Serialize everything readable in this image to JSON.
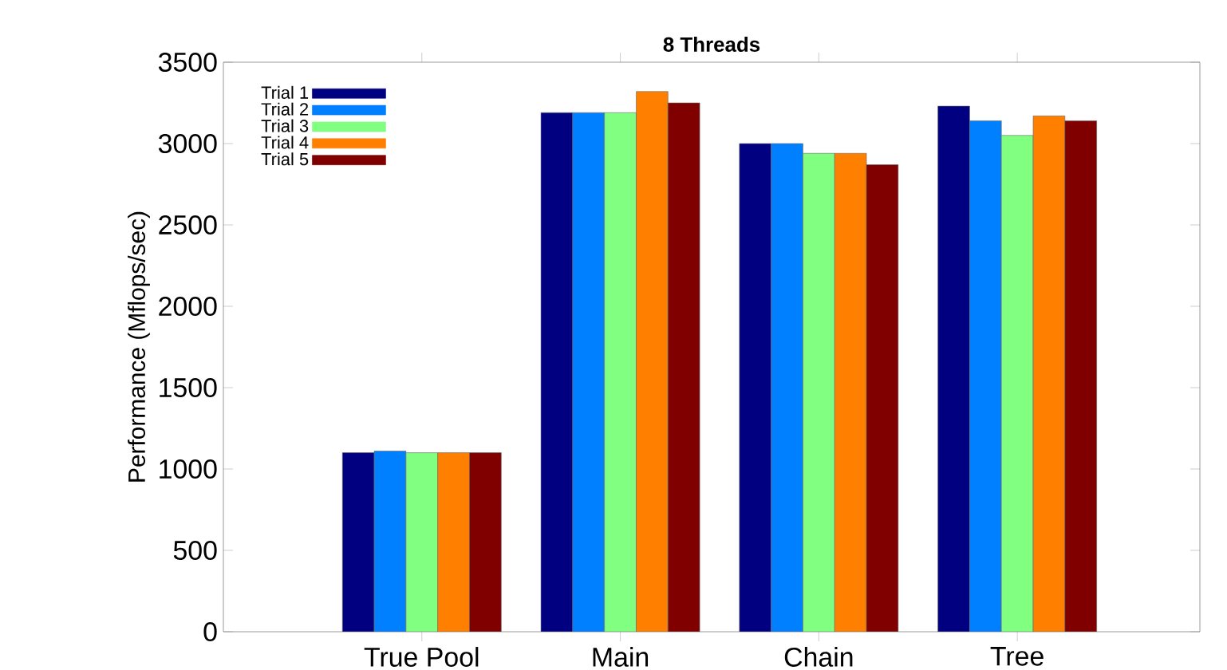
{
  "chart_data": {
    "type": "bar",
    "title": "8 Threads",
    "ylabel": "Performance (Mflops/sec)",
    "categories": [
      "True Pool",
      "Main",
      "Chain",
      "Tree"
    ],
    "series": [
      {
        "name": "Trial 1",
        "color": "#000080",
        "values": [
          1100,
          3190,
          3000,
          3230
        ]
      },
      {
        "name": "Trial 2",
        "color": "#0080ff",
        "values": [
          1110,
          3190,
          3000,
          3140
        ]
      },
      {
        "name": "Trial 3",
        "color": "#80ff80",
        "values": [
          1100,
          3190,
          2940,
          3050
        ]
      },
      {
        "name": "Trial 4",
        "color": "#ff8000",
        "values": [
          1100,
          3320,
          2940,
          3170
        ]
      },
      {
        "name": "Trial 5",
        "color": "#800000",
        "values": [
          1100,
          3250,
          2870,
          3140
        ]
      }
    ],
    "ylim": [
      0,
      3500
    ],
    "yticks": [
      0,
      500,
      1000,
      1500,
      2000,
      2500,
      3000,
      3500
    ],
    "legend": "top left"
  }
}
